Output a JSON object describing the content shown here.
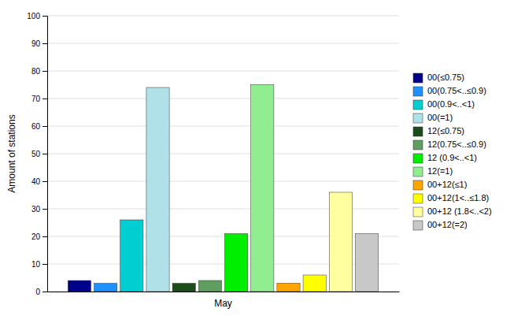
{
  "chart_data": {
    "type": "bar",
    "categories": [
      "May"
    ],
    "ylabel": "Amount of stations",
    "ylim": [
      0,
      100
    ],
    "yticks": [
      0,
      10,
      20,
      30,
      40,
      50,
      60,
      70,
      80,
      90,
      100
    ],
    "grid": true,
    "legend": "right",
    "series": [
      {
        "name": "00(≤0.75)",
        "color": "#00008B",
        "values": [
          4
        ]
      },
      {
        "name": "00(0.75<..≤0.9)",
        "color": "#1E90FF",
        "values": [
          3
        ]
      },
      {
        "name": "00(0.9<..<1)",
        "color": "#00CED1",
        "values": [
          26
        ]
      },
      {
        "name": "00(=1)",
        "color": "#B0E0E8",
        "values": [
          74
        ]
      },
      {
        "name": "12(≤0.75)",
        "color": "#1B4D1B",
        "values": [
          3
        ]
      },
      {
        "name": "12(0.75<..≤0.9)",
        "color": "#5F9E5F",
        "values": [
          4
        ]
      },
      {
        "name": "12 (0.9<..<1)",
        "color": "#00EE00",
        "values": [
          21
        ]
      },
      {
        "name": "12(=1)",
        "color": "#90EE90",
        "values": [
          75
        ]
      },
      {
        "name": "00+12(≤1)",
        "color": "#FFA500",
        "values": [
          3
        ]
      },
      {
        "name": "00+12(1<..≤1.8)",
        "color": "#FFFF00",
        "values": [
          6
        ]
      },
      {
        "name": "00+12 (1.8<..<2)",
        "color": "#FFFFA0",
        "values": [
          36
        ]
      },
      {
        "name": "00+12(=2)",
        "color": "#C8C8C8",
        "values": [
          21
        ]
      }
    ]
  }
}
